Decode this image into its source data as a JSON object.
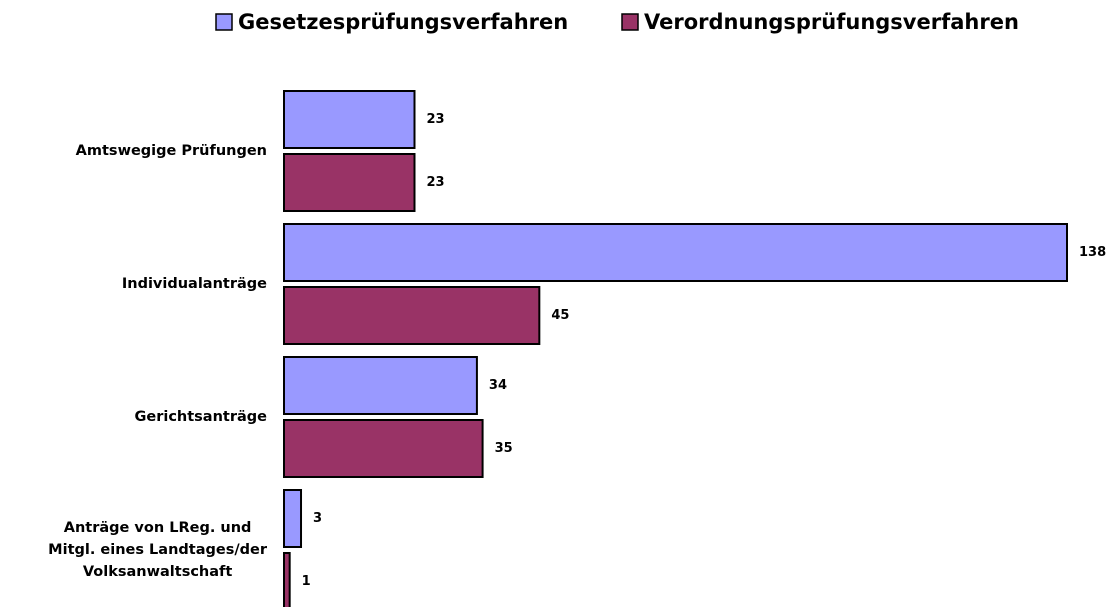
{
  "chart_data": {
    "type": "bar",
    "orientation": "horizontal",
    "categories": [
      "Amtswegige Prüfungen",
      "Individualanträge",
      "Gerichtsanträge",
      "Anträge von LReg. und\nMitgl. eines Landtages/der\nVolksanwaltschaft"
    ],
    "series": [
      {
        "name": "Gesetzesprüfungsverfahren",
        "color": "#9999ff",
        "values": [
          23,
          138,
          34,
          3
        ]
      },
      {
        "name": "Verordnungsprüfungsverfahren",
        "color": "#993366",
        "values": [
          23,
          45,
          35,
          1
        ]
      }
    ],
    "legend": "top"
  }
}
